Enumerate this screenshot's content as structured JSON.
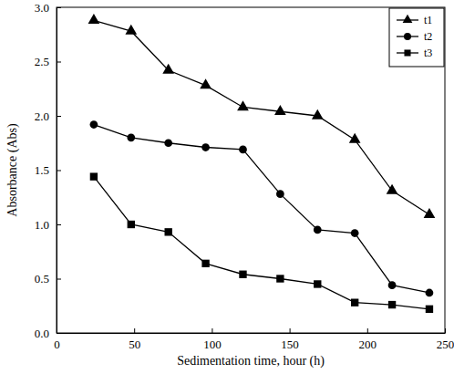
{
  "chart_data": {
    "type": "line",
    "x_label": "Sedimentation time, hour (h)",
    "y_label": "Absorbance (Abs)",
    "x": [
      24,
      48,
      72,
      96,
      120,
      144,
      168,
      192,
      216,
      240
    ],
    "series": [
      {
        "name": "t1",
        "color": "#000000",
        "marker": "triangle",
        "line_style": "solid",
        "values": [
          2.88,
          2.78,
          2.42,
          2.28,
          2.08,
          2.04,
          2.0,
          1.78,
          1.31,
          1.09
        ]
      },
      {
        "name": "t2",
        "color": "#000000",
        "marker": "circle",
        "line_style": "solid",
        "values": [
          1.92,
          1.8,
          1.75,
          1.71,
          1.69,
          1.28,
          0.95,
          0.92,
          0.44,
          0.37
        ]
      },
      {
        "name": "t3",
        "color": "#000000",
        "marker": "square",
        "line_style": "solid",
        "values": [
          1.44,
          1.0,
          0.93,
          0.64,
          0.54,
          0.5,
          0.45,
          0.28,
          0.26,
          0.22
        ]
      }
    ],
    "xlim": [
      0,
      250
    ],
    "xticks": [
      0,
      50,
      100,
      150,
      200,
      250
    ],
    "ylim": [
      0,
      3
    ],
    "yticks": [
      {
        "value": 0,
        "label": "0.0"
      },
      0.5,
      {
        "value": 1,
        "label": "1.0"
      },
      1.5,
      {
        "value": 2,
        "label": "2.0"
      },
      2.5,
      {
        "value": 3,
        "label": "3.0"
      }
    ],
    "grid": false,
    "legend": "top-right"
  }
}
